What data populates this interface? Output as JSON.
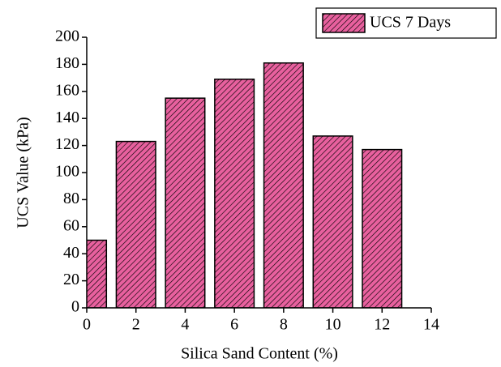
{
  "chart_data": {
    "type": "bar",
    "x_label": "Silica Sand Content (%)",
    "y_label": "UCS Value (kPa)",
    "x": [
      0,
      2,
      4,
      6,
      8,
      10,
      12
    ],
    "series": [
      {
        "name": "UCS 7 Days",
        "color": "#e8609e",
        "values": [
          50,
          123,
          155,
          169,
          181,
          127,
          117
        ]
      }
    ],
    "xlim": [
      0,
      14
    ],
    "xticks": [
      0,
      2,
      4,
      6,
      8,
      10,
      12,
      14
    ],
    "ylim": [
      0,
      200
    ],
    "yticks": [
      0,
      20,
      40,
      60,
      80,
      100,
      120,
      140,
      160,
      180,
      200
    ],
    "hatch": true,
    "legend": "top-right"
  }
}
